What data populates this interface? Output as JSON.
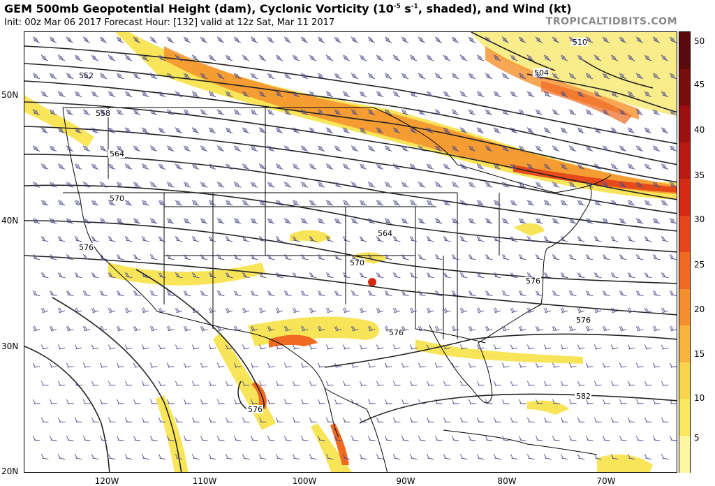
{
  "title": {
    "prefix": "GEM 500mb Geopotential Height (dam), Cyclonic Vorticity (10",
    "sup": "-5",
    "middle": " s",
    "sup2": "-1",
    "suffix": ", shaded), and Wind (kt)"
  },
  "subtitle": "Init: 00z Mar 06 2017   Forecast Hour: [132]   valid at 12z Sat, Mar 11 2017",
  "brand": "TROPICALTIDBITS.COM",
  "lat_labels": [
    "50N",
    "40N",
    "30N",
    "20N"
  ],
  "lon_labels": [
    "120W",
    "110W",
    "100W",
    "90W",
    "80W",
    "70W"
  ],
  "colorbar": {
    "labels": [
      "50",
      "45",
      "40",
      "35",
      "30",
      "25",
      "20",
      "15",
      "10",
      "5"
    ],
    "colors": [
      "#5a0a0a",
      "#7a0c0c",
      "#9c1010",
      "#b81a12",
      "#d42a14",
      "#e6461a",
      "#f06a22",
      "#f58f2c",
      "#f8b43c",
      "#fad44a",
      "#fbe860",
      "#fef6a0"
    ]
  },
  "contour_labels": [
    "504",
    "510",
    "552",
    "558",
    "564",
    "570",
    "576",
    "564",
    "570",
    "576",
    "576",
    "576",
    "582",
    "576"
  ]
}
